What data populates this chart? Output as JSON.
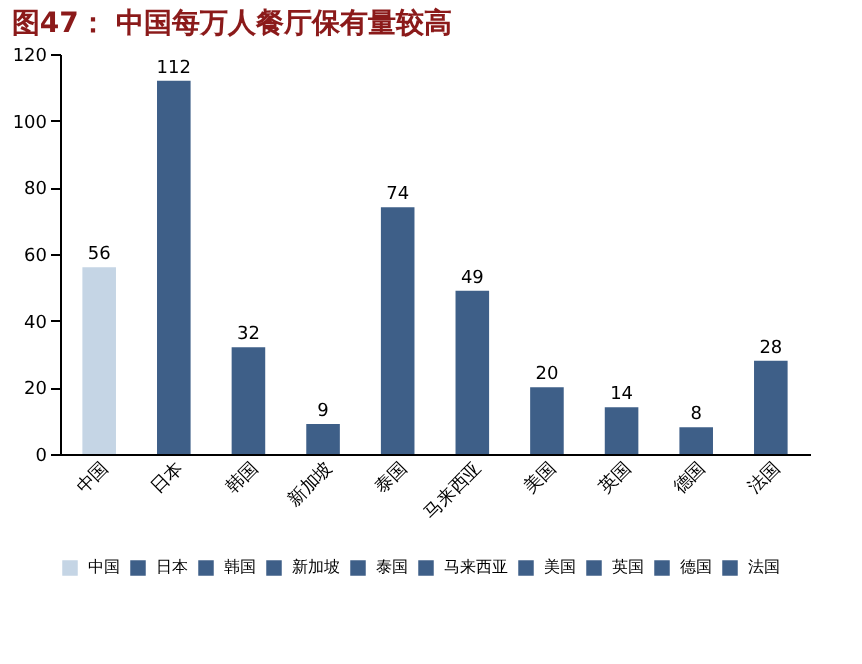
{
  "chart_data": {
    "type": "bar",
    "title": "图47： 中国每万人餐厅保有量较高",
    "categories": [
      "中国",
      "日本",
      "韩国",
      "新加坡",
      "泰国",
      "马来西亚",
      "美国",
      "英国",
      "德国",
      "法国"
    ],
    "stacked": true,
    "series": [
      {
        "name": "中国",
        "color": "#c5d5e5",
        "values": [
          56,
          null,
          null,
          null,
          null,
          null,
          null,
          null,
          null,
          null
        ]
      },
      {
        "name": "日本",
        "color": "#3e5f88",
        "values": [
          null,
          112,
          null,
          null,
          null,
          null,
          null,
          null,
          null,
          null
        ]
      },
      {
        "name": "韩国",
        "color": "#3e5f88",
        "values": [
          null,
          null,
          32,
          null,
          null,
          null,
          null,
          null,
          null,
          null
        ]
      },
      {
        "name": "新加坡",
        "color": "#3e5f88",
        "values": [
          null,
          null,
          null,
          9,
          null,
          null,
          null,
          null,
          null,
          null
        ]
      },
      {
        "name": "泰国",
        "color": "#3e5f88",
        "values": [
          null,
          null,
          null,
          null,
          74,
          null,
          null,
          null,
          null,
          null
        ]
      },
      {
        "name": "马来西亚",
        "color": "#3e5f88",
        "values": [
          null,
          null,
          null,
          null,
          null,
          49,
          null,
          null,
          null,
          null
        ]
      },
      {
        "name": "美国",
        "color": "#3e5f88",
        "values": [
          null,
          null,
          null,
          null,
          null,
          null,
          20,
          null,
          null,
          null
        ]
      },
      {
        "name": "英国",
        "color": "#3e5f88",
        "values": [
          null,
          null,
          null,
          null,
          null,
          null,
          null,
          14,
          null,
          null
        ]
      },
      {
        "name": "德国",
        "color": "#3e5f88",
        "values": [
          null,
          null,
          null,
          null,
          null,
          null,
          null,
          null,
          8,
          null
        ]
      },
      {
        "name": "法国",
        "color": "#3e5f88",
        "values": [
          null,
          null,
          null,
          null,
          null,
          null,
          null,
          null,
          null,
          28
        ]
      }
    ],
    "ylim": [
      0,
      120
    ],
    "yticks": [
      0,
      20,
      40,
      60,
      80,
      100,
      120
    ],
    "grid": false,
    "legend": "bottom",
    "data_labels": true
  }
}
